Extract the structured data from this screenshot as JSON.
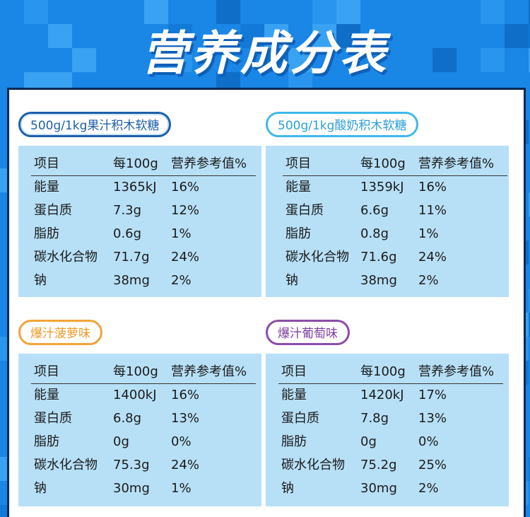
{
  "title": "营养成分表",
  "colors": {
    "background": "#1a86e6",
    "table_fill": "#b7e0f7",
    "pill_dark": "#1d5fa8",
    "pill_light": "#3fb7ee",
    "pill_orange": "#f3a33a",
    "pill_purple": "#8a4da8"
  },
  "tables": [
    {
      "label": "500g/1kg果汁积木软糖",
      "headers": [
        "项目",
        "每100g",
        "营养参考值%"
      ],
      "rows": [
        [
          "能量",
          "1365kJ",
          "16%"
        ],
        [
          "蛋白质",
          "7.3g",
          "12%"
        ],
        [
          "脂肪",
          "0.6g",
          "1%"
        ],
        [
          "碳水化合物",
          "71.7g",
          "24%"
        ],
        [
          "钠",
          "38mg",
          "2%"
        ]
      ]
    },
    {
      "label": "500g/1kg酸奶积木软糖",
      "headers": [
        "项目",
        "每100g",
        "营养参考值%"
      ],
      "rows": [
        [
          "能量",
          "1359kJ",
          "16%"
        ],
        [
          "蛋白质",
          "6.6g",
          "11%"
        ],
        [
          "脂肪",
          "0.8g",
          "1%"
        ],
        [
          "碳水化合物",
          "71.6g",
          "24%"
        ],
        [
          "钠",
          "38mg",
          "2%"
        ]
      ]
    },
    {
      "label": "爆汁菠萝味",
      "headers": [
        "项目",
        "每100g",
        "营养参考值%"
      ],
      "rows": [
        [
          "能量",
          "1400kJ",
          "16%"
        ],
        [
          "蛋白质",
          "6.8g",
          "13%"
        ],
        [
          "脂肪",
          "0g",
          "0%"
        ],
        [
          "碳水化合物",
          "75.3g",
          "24%"
        ],
        [
          "钠",
          "30mg",
          "1%"
        ]
      ]
    },
    {
      "label": "爆汁葡萄味",
      "headers": [
        "项目",
        "每100g",
        "营养参考值%"
      ],
      "rows": [
        [
          "能量",
          "1420kJ",
          "17%"
        ],
        [
          "蛋白质",
          "7.8g",
          "13%"
        ],
        [
          "脂肪",
          "0g",
          "0%"
        ],
        [
          "碳水化合物",
          "75.2g",
          "25%"
        ],
        [
          "钠",
          "30mg",
          "2%"
        ]
      ]
    }
  ]
}
